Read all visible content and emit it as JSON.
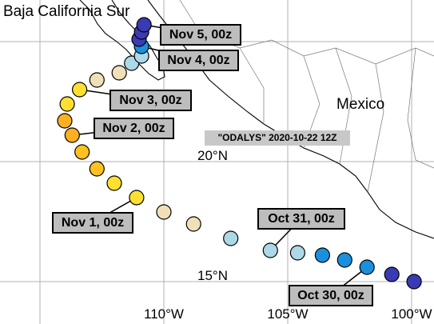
{
  "title": "\"ODALYS\" 2020-10-22 12Z",
  "regions": [
    "Baja California Sur",
    "Mexico"
  ],
  "lon_ticks": [
    {
      "value": -110,
      "label": "110°W"
    },
    {
      "value": -105,
      "label": "105°W"
    },
    {
      "value": -100,
      "label": "100°W"
    }
  ],
  "lat_ticks": [
    {
      "value": 20,
      "label": "20°N"
    },
    {
      "value": 15,
      "label": "15°N"
    }
  ],
  "track": [
    {
      "lon": -99.9,
      "lat": 15.0,
      "color": "#3a3ab5"
    },
    {
      "lon": -100.8,
      "lat": 15.3,
      "color": "#3a3ab5"
    },
    {
      "lon": -101.8,
      "lat": 15.6,
      "color": "#1a8fdc"
    },
    {
      "lon": -102.7,
      "lat": 15.9,
      "color": "#1a8fdc"
    },
    {
      "lon": -103.6,
      "lat": 16.1,
      "color": "#1a8fdc"
    },
    {
      "lon": -104.6,
      "lat": 16.2,
      "color": "#add8e6"
    },
    {
      "lon": -105.7,
      "lat": 16.3,
      "color": "#add8e6"
    },
    {
      "lon": -107.3,
      "lat": 16.8,
      "color": "#add8e6"
    },
    {
      "lon": -108.8,
      "lat": 17.4,
      "color": "#f0e0b8"
    },
    {
      "lon": -110.0,
      "lat": 17.9,
      "color": "#f0e0b8"
    },
    {
      "lon": -111.1,
      "lat": 18.5,
      "color": "#ffe030"
    },
    {
      "lon": -112.0,
      "lat": 19.1,
      "color": "#ffe030"
    },
    {
      "lon": -112.7,
      "lat": 19.7,
      "color": "#ffc020"
    },
    {
      "lon": -113.3,
      "lat": 20.4,
      "color": "#ffc020"
    },
    {
      "lon": -113.7,
      "lat": 21.1,
      "color": "#ffb020"
    },
    {
      "lon": -114.0,
      "lat": 21.7,
      "color": "#ffb020"
    },
    {
      "lon": -113.9,
      "lat": 22.4,
      "color": "#ffe030"
    },
    {
      "lon": -113.4,
      "lat": 23.0,
      "color": "#ffe030"
    },
    {
      "lon": -112.7,
      "lat": 23.4,
      "color": "#f0e0b8"
    },
    {
      "lon": -111.8,
      "lat": 23.7,
      "color": "#f0e0b8"
    },
    {
      "lon": -111.3,
      "lat": 24.1,
      "color": "#add8e6"
    },
    {
      "lon": -110.9,
      "lat": 24.4,
      "color": "#add8e6"
    },
    {
      "lon": -110.9,
      "lat": 24.8,
      "color": "#1a8fdc"
    },
    {
      "lon": -111.0,
      "lat": 25.1,
      "color": "#3a3ab5"
    },
    {
      "lon": -110.9,
      "lat": 25.4,
      "color": "#3a3ab5"
    },
    {
      "lon": -110.8,
      "lat": 25.7,
      "color": "#3a3ab5"
    }
  ],
  "time_labels": [
    "Nov 5, 00z",
    "Nov 4, 00z",
    "Nov 3, 00z",
    "Nov 2, 00z",
    "Nov 1, 00z",
    "Oct 31, 00z",
    "Oct 30, 00z"
  ]
}
